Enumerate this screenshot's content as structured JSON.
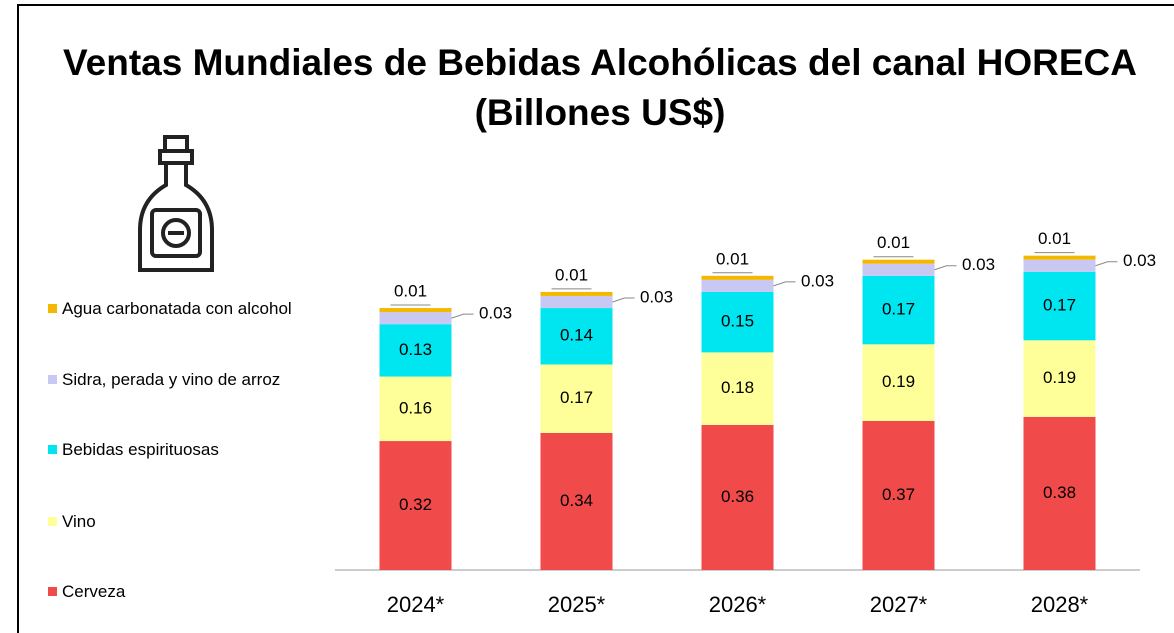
{
  "chart_data": {
    "type": "stacked_bar",
    "title": "Ventas Mundiales de Bebidas Alcohólicas del canal HORECA (Billones US$)",
    "categories": [
      "2024*",
      "2025*",
      "2026*",
      "2027*",
      "2028*"
    ],
    "series": [
      {
        "name": "Cerveza",
        "color": "#f04a4a",
        "values": [
          0.32,
          0.34,
          0.36,
          0.37,
          0.38
        ]
      },
      {
        "name": "Vino",
        "color": "#ffff99",
        "values": [
          0.16,
          0.17,
          0.18,
          0.19,
          0.19
        ]
      },
      {
        "name": "Bebidas espirituosas",
        "color": "#00e6f0",
        "values": [
          0.13,
          0.14,
          0.15,
          0.17,
          0.17
        ]
      },
      {
        "name": "Sidra, perada y vino de arroz",
        "color": "#c8c8f2",
        "values": [
          0.03,
          0.03,
          0.03,
          0.03,
          0.03
        ]
      },
      {
        "name": "Agua carbonatada con alcohol",
        "color": "#f5b800",
        "values": [
          0.01,
          0.01,
          0.01,
          0.01,
          0.01
        ]
      }
    ],
    "legend": "left"
  }
}
